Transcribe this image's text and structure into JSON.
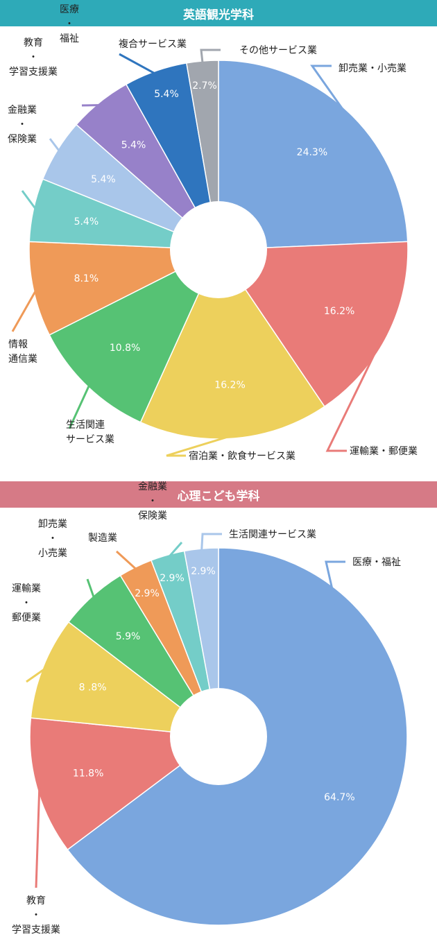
{
  "colors": {
    "banner1": "#2eaab8",
    "banner2": "#d67a86"
  },
  "chart_data": [
    {
      "type": "pie",
      "title": "英語観光学科",
      "categories": [
        "卸売業・小売業",
        "運輸業・郵便業",
        "宿泊業・飲食サービス業",
        "生活関連\nサービス業",
        "情報\n通信業",
        "金融業\n・\n保険業",
        "教育\n・\n学習支援業",
        "医療\n・\n福祉",
        "複合サービス業",
        "その他サービス業"
      ],
      "values": [
        24.3,
        16.2,
        16.2,
        10.8,
        8.1,
        5.4,
        5.4,
        5.4,
        5.4,
        2.7
      ],
      "value_labels": [
        "24.3%",
        "16.2%",
        "16.2%",
        "10.8%",
        "8.1%",
        "5.4%",
        "5.4%",
        "5.4%",
        "5.4%",
        "2.7%"
      ],
      "colors": [
        "#7aa6de",
        "#e97b78",
        "#edd05c",
        "#56c274",
        "#ef9a58",
        "#74cdc8",
        "#a9c6ea",
        "#9781c9",
        "#2f75be",
        "#a1a6ae"
      ]
    },
    {
      "type": "pie",
      "title": "心理こども学科",
      "categories": [
        "医療・福祉",
        "教育\n・\n学習支援業",
        "運輸業\n・\n郵便業",
        "卸売業\n・\n小売業",
        "製造業",
        "金融業\n・\n保険業",
        "生活関連サービス業"
      ],
      "values": [
        64.7,
        11.8,
        8.8,
        5.9,
        2.9,
        2.9,
        2.9
      ],
      "value_labels": [
        "64.7%",
        "11.8%",
        "8 .8%",
        "5.9%",
        "2.9%",
        "2.9%",
        "2.9%"
      ],
      "colors": [
        "#7aa6de",
        "#e97b78",
        "#edd05c",
        "#56c274",
        "#ef9a58",
        "#74cdc8",
        "#a9c6ea"
      ]
    }
  ]
}
